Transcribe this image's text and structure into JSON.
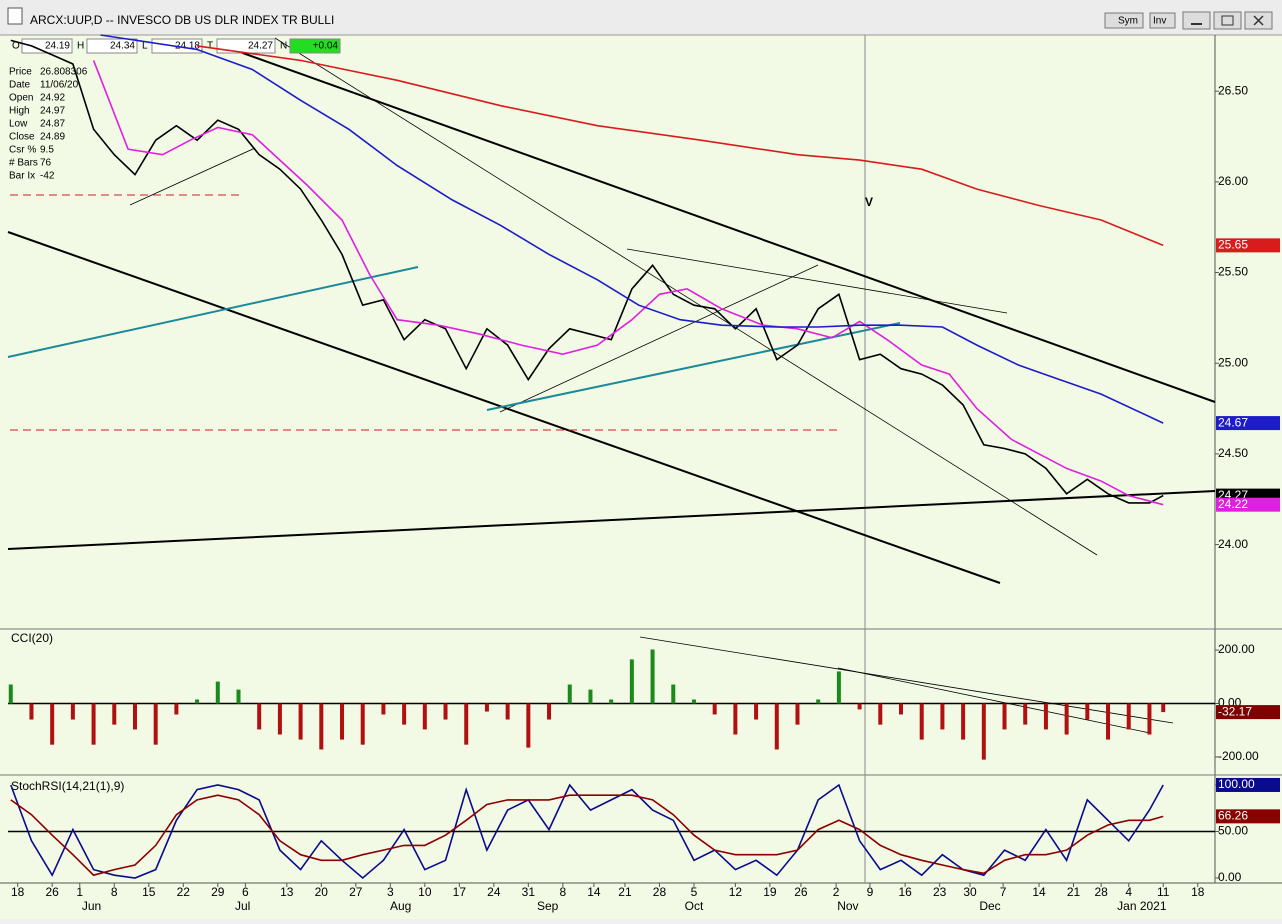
{
  "window": {
    "title": "ARCX:UUP,D -- INVESCO DB US DLR INDEX TR BULLI",
    "buttons": [
      "Sym",
      "Inv"
    ],
    "ohlc": [
      {
        "label": "O",
        "value": 24.19
      },
      {
        "label": "H",
        "value": 24.34
      },
      {
        "label": "L",
        "value": 24.18
      },
      {
        "label": "T",
        "value": 24.27
      },
      {
        "label": "N",
        "value": "+0.04"
      }
    ],
    "data_window": [
      {
        "label": "Price",
        "value": 26.808306
      },
      {
        "label": "Date",
        "value": "11/06/20"
      },
      {
        "label": "Open",
        "value": 24.92
      },
      {
        "label": "High",
        "value": 24.97
      },
      {
        "label": "Low",
        "value": 24.87
      },
      {
        "label": "Close",
        "value": 24.89
      },
      {
        "label": "Csr %",
        "value": 9.5
      },
      {
        "label": "# Bars",
        "value": 76
      },
      {
        "label": "Bar Ix",
        "value": -42
      }
    ]
  },
  "chart_data": [
    {
      "type": "line",
      "annotation": "V",
      "xlim": [
        -0.4,
        174.5
      ],
      "ylim": [
        23.54,
        26.81
      ],
      "yticks": [
        {
          "value": 24,
          "label": "24.00"
        },
        {
          "value": 24.5,
          "label": "24.50"
        },
        {
          "value": 25,
          "label": "25.00"
        },
        {
          "value": 25.5,
          "label": "25.50"
        },
        {
          "value": 26,
          "label": "26.00"
        },
        {
          "value": 26.5,
          "label": "26.50"
        }
      ],
      "series": [
        {
          "color": "#000000",
          "last_label": "24.27",
          "x": [
            0,
            3,
            6,
            9,
            12,
            15,
            18,
            21,
            24,
            27,
            30,
            33,
            36,
            39,
            42,
            45,
            48,
            51,
            54,
            57,
            60,
            63,
            66,
            69,
            72,
            75,
            78,
            81,
            84,
            87,
            90,
            93,
            96,
            99,
            102,
            105,
            108,
            111,
            114,
            117,
            120,
            123,
            126,
            129,
            132,
            135,
            138,
            141,
            144,
            147,
            150,
            153,
            156,
            159,
            162,
            165,
            167
          ],
          "values": [
            26.78,
            26.75,
            26.7,
            26.65,
            26.29,
            26.15,
            26.04,
            26.23,
            26.31,
            26.23,
            26.34,
            26.29,
            26.15,
            26.07,
            25.96,
            25.79,
            25.6,
            25.32,
            25.35,
            25.13,
            25.24,
            25.19,
            24.97,
            25.19,
            25.1,
            24.91,
            25.08,
            25.19,
            25.16,
            25.13,
            25.41,
            25.54,
            25.38,
            25.32,
            25.3,
            25.19,
            25.3,
            25.02,
            25.1,
            25.3,
            25.38,
            25.02,
            25.05,
            24.97,
            24.94,
            24.88,
            24.77,
            24.55,
            24.53,
            24.5,
            24.42,
            24.28,
            24.36,
            24.28,
            24.23,
            24.23,
            24.27
          ]
        },
        {
          "color": "#e020e0",
          "last_label": "24.22",
          "x": [
            12,
            17,
            22,
            26,
            30,
            35,
            39,
            43,
            48,
            52,
            56,
            62,
            68,
            74,
            80,
            85,
            90,
            94,
            98,
            103,
            109,
            114,
            119,
            123,
            127,
            132,
            136,
            140,
            145,
            149,
            153,
            158,
            162,
            167
          ],
          "values": [
            26.67,
            26.18,
            26.15,
            26.23,
            26.3,
            26.26,
            26.12,
            25.98,
            25.79,
            25.49,
            25.24,
            25.21,
            25.16,
            25.1,
            25.05,
            25.1,
            25.24,
            25.38,
            25.41,
            25.3,
            25.21,
            25.19,
            25.14,
            25.23,
            25.13,
            24.99,
            24.94,
            24.75,
            24.58,
            24.5,
            24.42,
            24.35,
            24.27,
            24.22
          ]
        },
        {
          "color": "#1c1cc8",
          "last_label": "24.67",
          "x": [
            13,
            27,
            35,
            42,
            49,
            56,
            64,
            71,
            78,
            85,
            91,
            97,
            103,
            111,
            117,
            123,
            129,
            135,
            140,
            146,
            152,
            158,
            167
          ],
          "values": [
            26.81,
            26.73,
            26.62,
            26.45,
            26.29,
            26.09,
            25.9,
            25.76,
            25.6,
            25.46,
            25.32,
            25.24,
            25.21,
            25.2,
            25.2,
            25.21,
            25.21,
            25.2,
            25.1,
            24.99,
            24.91,
            24.83,
            24.67
          ]
        },
        {
          "color": "#d81c1c",
          "last_label": "25.65",
          "x": [
            27,
            42,
            56,
            71,
            85,
            100,
            114,
            123,
            132,
            140,
            149,
            158,
            167
          ],
          "values": [
            26.75,
            26.67,
            26.56,
            26.42,
            26.31,
            26.23,
            26.15,
            26.12,
            26.07,
            25.96,
            25.87,
            25.79,
            25.65
          ]
        }
      ]
    },
    {
      "type": "bar",
      "title": "CCI(20)",
      "xlim": [
        -0.4,
        174.5
      ],
      "ylim": [
        -260,
        275
      ],
      "yticks": [
        {
          "value": -200,
          "label": "-200.00"
        },
        {
          "value": 0,
          "label": "0.00"
        },
        {
          "value": 200,
          "label": "200.00"
        }
      ],
      "hlines": [
        0
      ],
      "x": [
        0,
        3,
        6,
        9,
        12,
        15,
        18,
        21,
        24,
        27,
        30,
        33,
        36,
        39,
        42,
        45,
        48,
        51,
        54,
        57,
        60,
        63,
        66,
        69,
        72,
        75,
        78,
        81,
        84,
        87,
        90,
        93,
        96,
        99,
        102,
        105,
        108,
        111,
        114,
        117,
        120,
        123,
        126,
        129,
        132,
        135,
        138,
        141,
        144,
        147,
        150,
        153,
        156,
        159,
        162,
        165,
        167
      ],
      "series": [
        {
          "color": "#800000",
          "pos_color": "#1a8a1a",
          "neg_color": "#b01010",
          "last_label": "-32.17",
          "values": [
            71,
            -60,
            -154,
            -60,
            -154,
            -79,
            -97,
            -154,
            -41,
            15,
            82,
            52,
            -97,
            -116,
            -135,
            -172,
            -135,
            -154,
            -41,
            -79,
            -97,
            -60,
            -154,
            -30,
            -60,
            -165,
            -60,
            71,
            52,
            15,
            165,
            202,
            71,
            15,
            -41,
            -116,
            -60,
            -172,
            -79,
            15,
            120,
            -22,
            -79,
            -41,
            -135,
            -97,
            -135,
            -210,
            -97,
            -79,
            -97,
            -116,
            -60,
            -135,
            -97,
            -116,
            -32.17
          ]
        }
      ]
    },
    {
      "type": "line",
      "title": "StochRSI(14,21(1),9)",
      "xlim": [
        -0.4,
        174.5
      ],
      "ylim": [
        -5.4,
        107.5
      ],
      "yticks": [
        {
          "value": 0,
          "label": "0.00"
        },
        {
          "value": 50,
          "label": "50.00"
        },
        {
          "value": 100,
          "label": "100.00"
        }
      ],
      "hlines": [
        50
      ],
      "x": [
        0,
        3,
        6,
        9,
        12,
        15,
        18,
        21,
        24,
        27,
        30,
        33,
        36,
        39,
        42,
        45,
        48,
        51,
        54,
        57,
        60,
        63,
        66,
        69,
        72,
        75,
        78,
        81,
        84,
        87,
        90,
        93,
        96,
        99,
        102,
        105,
        108,
        111,
        114,
        117,
        120,
        123,
        126,
        129,
        132,
        135,
        138,
        141,
        144,
        147,
        150,
        153,
        156,
        159,
        162,
        165,
        167
      ],
      "xticks": [
        {
          "value": 1,
          "label": "18"
        },
        {
          "value": 6,
          "label": "26"
        },
        {
          "value": 10,
          "label": "1"
        },
        {
          "value": 15,
          "label": "8"
        },
        {
          "value": 20,
          "label": "15"
        },
        {
          "value": 25,
          "label": "22"
        },
        {
          "value": 30,
          "label": "29"
        },
        {
          "value": 34,
          "label": "6"
        },
        {
          "value": 40,
          "label": "13"
        },
        {
          "value": 45,
          "label": "20"
        },
        {
          "value": 50,
          "label": "27"
        },
        {
          "value": 55,
          "label": "3"
        },
        {
          "value": 60,
          "label": "10"
        },
        {
          "value": 65,
          "label": "17"
        },
        {
          "value": 70,
          "label": "24"
        },
        {
          "value": 75,
          "label": "31"
        },
        {
          "value": 80,
          "label": "8"
        },
        {
          "value": 84.5,
          "label": "14"
        },
        {
          "value": 89,
          "label": "21"
        },
        {
          "value": 94,
          "label": "28"
        },
        {
          "value": 99,
          "label": "5"
        },
        {
          "value": 105,
          "label": "12"
        },
        {
          "value": 110,
          "label": "19"
        },
        {
          "value": 114.5,
          "label": "26"
        },
        {
          "value": 119.6,
          "label": "2"
        },
        {
          "value": 124.5,
          "label": "9"
        },
        {
          "value": 129.6,
          "label": "16"
        },
        {
          "value": 134.6,
          "label": "23"
        },
        {
          "value": 139,
          "label": "30"
        },
        {
          "value": 143.8,
          "label": "7"
        },
        {
          "value": 149,
          "label": "14"
        },
        {
          "value": 154,
          "label": "21"
        },
        {
          "value": 158,
          "label": "28"
        },
        {
          "value": 162,
          "label": "4"
        },
        {
          "value": 167,
          "label": "11"
        },
        {
          "value": 172,
          "label": "18"
        }
      ],
      "x_months": [
        {
          "value": 11.7,
          "label": "Jun"
        },
        {
          "value": 33.6,
          "label": "Jul"
        },
        {
          "value": 56.5,
          "label": "Aug"
        },
        {
          "value": 77.8,
          "label": "Sep"
        },
        {
          "value": 99,
          "label": "Oct"
        },
        {
          "value": 121.3,
          "label": "Nov"
        },
        {
          "value": 141.9,
          "label": "Dec"
        },
        {
          "value": 163.9,
          "label": "Jan 2021"
        }
      ],
      "series": [
        {
          "color": "#0a0a8c",
          "last_label": "100.00",
          "values": [
            100,
            40,
            3,
            52,
            9,
            3,
            0,
            9,
            62,
            95,
            100,
            95,
            84,
            30,
            9,
            40,
            19,
            0,
            19,
            52,
            9,
            19,
            95,
            30,
            73,
            84,
            52,
            100,
            73,
            84,
            95,
            73,
            62,
            19,
            30,
            9,
            19,
            3,
            30,
            84,
            100,
            40,
            9,
            19,
            3,
            25,
            9,
            3,
            30,
            19,
            52,
            19,
            84,
            62,
            40,
            73,
            100
          ]
        },
        {
          "color": "#8b0000",
          "last_label": "66.26",
          "values": [
            84,
            68,
            46,
            25,
            3,
            9,
            14,
            35,
            68,
            84,
            89,
            84,
            68,
            40,
            25,
            19,
            19,
            25,
            30,
            35,
            35,
            46,
            62,
            79,
            84,
            84,
            84,
            89,
            89,
            89,
            89,
            84,
            68,
            46,
            30,
            25,
            25,
            25,
            30,
            52,
            62,
            52,
            35,
            25,
            19,
            14,
            9,
            5,
            19,
            25,
            25,
            30,
            46,
            57,
            62,
            62,
            66.26
          ]
        }
      ]
    }
  ]
}
